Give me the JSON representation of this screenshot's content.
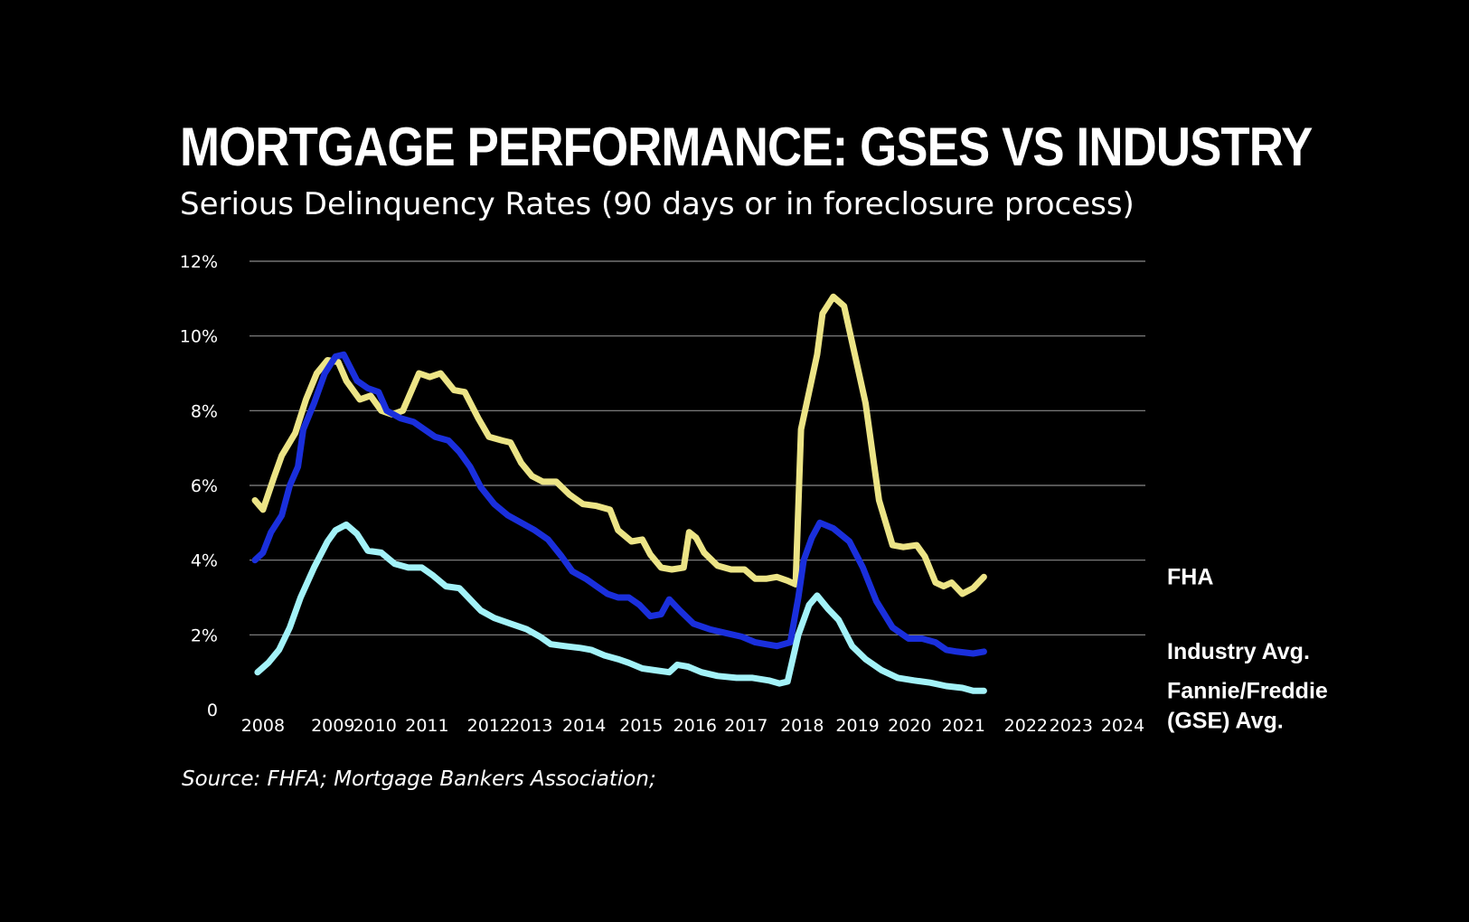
{
  "title": "MORTGAGE PERFORMANCE: GSES VS INDUSTRY",
  "subtitle": "Serious Delinquency Rates (90 days or in foreclosure process)",
  "source": "Source: FHFA; Mortgage Bankers Association;",
  "chart_data": {
    "type": "line",
    "title": "MORTGAGE PERFORMANCE: GSES VS INDUSTRY",
    "subtitle": "Serious Delinquency Rates (90 days or in foreclosure process)",
    "xlabel": "",
    "ylabel": "",
    "xlim": [
      2007.75,
      2024.4
    ],
    "ylim": [
      0,
      12
    ],
    "grid": true,
    "legend": "right-end labels",
    "y_ticks": [
      {
        "value": 0,
        "label": "0"
      },
      {
        "value": 2,
        "label": "2%"
      },
      {
        "value": 4,
        "label": "4%"
      },
      {
        "value": 6,
        "label": "6%"
      },
      {
        "value": 8,
        "label": "8%"
      },
      {
        "value": 10,
        "label": "10%"
      },
      {
        "value": 12,
        "label": "12%"
      }
    ],
    "x_ticks": [
      {
        "value": 2008,
        "label": "2008"
      },
      {
        "value": 2009.3,
        "label": "2009"
      },
      {
        "value": 2010.08,
        "label": "2010"
      },
      {
        "value": 2011.05,
        "label": "2011"
      },
      {
        "value": 2012.2,
        "label": "2012"
      },
      {
        "value": 2012.98,
        "label": "2013"
      },
      {
        "value": 2013.97,
        "label": "2014"
      },
      {
        "value": 2015.03,
        "label": "2015"
      },
      {
        "value": 2016.03,
        "label": "2016"
      },
      {
        "value": 2016.98,
        "label": "2017"
      },
      {
        "value": 2018.02,
        "label": "2018"
      },
      {
        "value": 2019.05,
        "label": "2019"
      },
      {
        "value": 2020.02,
        "label": "2020"
      },
      {
        "value": 2021.02,
        "label": "2021"
      },
      {
        "value": 2022.18,
        "label": "2022"
      },
      {
        "value": 2023.02,
        "label": "2023"
      },
      {
        "value": 2023.98,
        "label": "2024"
      }
    ],
    "series": [
      {
        "name": "FHA",
        "label_lines": [
          "FHA"
        ],
        "color": "#ece486",
        "points": [
          [
            2007.85,
            5.6
          ],
          [
            2008.0,
            5.35
          ],
          [
            2008.2,
            6.2
          ],
          [
            2008.35,
            6.8
          ],
          [
            2008.6,
            7.4
          ],
          [
            2008.8,
            8.3
          ],
          [
            2009.0,
            9.0
          ],
          [
            2009.2,
            9.35
          ],
          [
            2009.4,
            9.3
          ],
          [
            2009.55,
            8.8
          ],
          [
            2009.8,
            8.3
          ],
          [
            2010.0,
            8.4
          ],
          [
            2010.2,
            8.0
          ],
          [
            2010.4,
            7.9
          ],
          [
            2010.6,
            8.0
          ],
          [
            2010.9,
            9.0
          ],
          [
            2011.1,
            8.9
          ],
          [
            2011.3,
            9.0
          ],
          [
            2011.55,
            8.55
          ],
          [
            2011.75,
            8.5
          ],
          [
            2012.0,
            7.8
          ],
          [
            2012.2,
            7.3
          ],
          [
            2012.45,
            7.2
          ],
          [
            2012.6,
            7.15
          ],
          [
            2012.8,
            6.6
          ],
          [
            2013.0,
            6.25
          ],
          [
            2013.2,
            6.1
          ],
          [
            2013.45,
            6.1
          ],
          [
            2013.7,
            5.75
          ],
          [
            2013.95,
            5.5
          ],
          [
            2014.2,
            5.45
          ],
          [
            2014.45,
            5.35
          ],
          [
            2014.6,
            4.8
          ],
          [
            2014.85,
            4.5
          ],
          [
            2015.05,
            4.55
          ],
          [
            2015.2,
            4.15
          ],
          [
            2015.4,
            3.8
          ],
          [
            2015.6,
            3.75
          ],
          [
            2015.82,
            3.8
          ],
          [
            2015.92,
            4.75
          ],
          [
            2016.05,
            4.6
          ],
          [
            2016.2,
            4.2
          ],
          [
            2016.45,
            3.85
          ],
          [
            2016.7,
            3.75
          ],
          [
            2016.95,
            3.75
          ],
          [
            2017.15,
            3.5
          ],
          [
            2017.35,
            3.5
          ],
          [
            2017.55,
            3.55
          ],
          [
            2017.75,
            3.45
          ],
          [
            2017.9,
            3.35
          ],
          [
            2018.0,
            7.5
          ],
          [
            2018.15,
            8.5
          ],
          [
            2018.3,
            9.5
          ],
          [
            2018.4,
            10.6
          ],
          [
            2018.6,
            11.05
          ],
          [
            2018.8,
            10.8
          ],
          [
            2019.0,
            9.5
          ],
          [
            2019.2,
            8.2
          ],
          [
            2019.45,
            5.6
          ],
          [
            2019.7,
            4.4
          ],
          [
            2019.9,
            4.35
          ],
          [
            2020.15,
            4.4
          ],
          [
            2020.3,
            4.1
          ],
          [
            2020.5,
            3.4
          ],
          [
            2020.65,
            3.3
          ],
          [
            2020.8,
            3.4
          ],
          [
            2021.0,
            3.1
          ],
          [
            2021.2,
            3.25
          ],
          [
            2021.4,
            3.55
          ]
        ]
      },
      {
        "name": "Industry Avg.",
        "label_lines": [
          "Industry Avg."
        ],
        "color": "#1a2fdc",
        "points": [
          [
            2007.85,
            4.0
          ],
          [
            2008.0,
            4.2
          ],
          [
            2008.15,
            4.75
          ],
          [
            2008.35,
            5.2
          ],
          [
            2008.5,
            6.0
          ],
          [
            2008.65,
            6.5
          ],
          [
            2008.75,
            7.5
          ],
          [
            2008.95,
            8.2
          ],
          [
            2009.15,
            9.0
          ],
          [
            2009.35,
            9.45
          ],
          [
            2009.5,
            9.5
          ],
          [
            2009.75,
            8.8
          ],
          [
            2009.95,
            8.6
          ],
          [
            2010.15,
            8.5
          ],
          [
            2010.3,
            8.0
          ],
          [
            2010.55,
            7.8
          ],
          [
            2010.8,
            7.7
          ],
          [
            2011.0,
            7.5
          ],
          [
            2011.2,
            7.3
          ],
          [
            2011.45,
            7.2
          ],
          [
            2011.65,
            6.9
          ],
          [
            2011.85,
            6.5
          ],
          [
            2012.05,
            5.95
          ],
          [
            2012.3,
            5.5
          ],
          [
            2012.55,
            5.2
          ],
          [
            2012.8,
            5.0
          ],
          [
            2013.05,
            4.8
          ],
          [
            2013.3,
            4.55
          ],
          [
            2013.55,
            4.1
          ],
          [
            2013.75,
            3.7
          ],
          [
            2014.0,
            3.5
          ],
          [
            2014.2,
            3.3
          ],
          [
            2014.4,
            3.1
          ],
          [
            2014.6,
            3.0
          ],
          [
            2014.8,
            3.0
          ],
          [
            2015.0,
            2.8
          ],
          [
            2015.2,
            2.5
          ],
          [
            2015.4,
            2.55
          ],
          [
            2015.55,
            2.95
          ],
          [
            2015.75,
            2.65
          ],
          [
            2016.0,
            2.3
          ],
          [
            2016.3,
            2.15
          ],
          [
            2016.6,
            2.05
          ],
          [
            2016.9,
            1.95
          ],
          [
            2017.15,
            1.8
          ],
          [
            2017.35,
            1.75
          ],
          [
            2017.55,
            1.7
          ],
          [
            2017.8,
            1.8
          ],
          [
            2017.95,
            3.0
          ],
          [
            2018.05,
            4.0
          ],
          [
            2018.2,
            4.6
          ],
          [
            2018.35,
            5.0
          ],
          [
            2018.6,
            4.85
          ],
          [
            2018.9,
            4.5
          ],
          [
            2019.15,
            3.8
          ],
          [
            2019.4,
            2.9
          ],
          [
            2019.7,
            2.2
          ],
          [
            2020.0,
            1.9
          ],
          [
            2020.25,
            1.9
          ],
          [
            2020.5,
            1.8
          ],
          [
            2020.7,
            1.6
          ],
          [
            2020.9,
            1.55
          ],
          [
            2021.2,
            1.5
          ],
          [
            2021.4,
            1.55
          ]
        ]
      },
      {
        "name": "Fannie/Freddie (GSE) Avg.",
        "label_lines": [
          "Fannie/Freddie",
          "(GSE) Avg."
        ],
        "color": "#a3f2f8",
        "points": [
          [
            2007.9,
            1.0
          ],
          [
            2008.1,
            1.25
          ],
          [
            2008.3,
            1.6
          ],
          [
            2008.5,
            2.2
          ],
          [
            2008.7,
            3.0
          ],
          [
            2008.95,
            3.8
          ],
          [
            2009.2,
            4.5
          ],
          [
            2009.35,
            4.8
          ],
          [
            2009.55,
            4.95
          ],
          [
            2009.75,
            4.7
          ],
          [
            2009.95,
            4.25
          ],
          [
            2010.2,
            4.2
          ],
          [
            2010.45,
            3.9
          ],
          [
            2010.7,
            3.8
          ],
          [
            2010.95,
            3.8
          ],
          [
            2011.15,
            3.6
          ],
          [
            2011.4,
            3.3
          ],
          [
            2011.65,
            3.25
          ],
          [
            2011.85,
            2.95
          ],
          [
            2012.05,
            2.65
          ],
          [
            2012.3,
            2.45
          ],
          [
            2012.6,
            2.3
          ],
          [
            2012.9,
            2.15
          ],
          [
            2013.15,
            1.95
          ],
          [
            2013.35,
            1.75
          ],
          [
            2013.6,
            1.7
          ],
          [
            2013.9,
            1.65
          ],
          [
            2014.1,
            1.6
          ],
          [
            2014.35,
            1.45
          ],
          [
            2014.6,
            1.35
          ],
          [
            2014.8,
            1.25
          ],
          [
            2015.05,
            1.1
          ],
          [
            2015.3,
            1.05
          ],
          [
            2015.55,
            1.0
          ],
          [
            2015.7,
            1.2
          ],
          [
            2015.9,
            1.15
          ],
          [
            2016.15,
            1.0
          ],
          [
            2016.45,
            0.9
          ],
          [
            2016.8,
            0.85
          ],
          [
            2017.1,
            0.85
          ],
          [
            2017.4,
            0.78
          ],
          [
            2017.6,
            0.7
          ],
          [
            2017.75,
            0.75
          ],
          [
            2017.95,
            2.0
          ],
          [
            2018.15,
            2.8
          ],
          [
            2018.3,
            3.05
          ],
          [
            2018.5,
            2.7
          ],
          [
            2018.7,
            2.4
          ],
          [
            2018.95,
            1.7
          ],
          [
            2019.2,
            1.35
          ],
          [
            2019.5,
            1.05
          ],
          [
            2019.8,
            0.85
          ],
          [
            2020.1,
            0.78
          ],
          [
            2020.4,
            0.72
          ],
          [
            2020.7,
            0.63
          ],
          [
            2021.0,
            0.58
          ],
          [
            2021.2,
            0.5
          ],
          [
            2021.4,
            0.5
          ]
        ]
      }
    ]
  }
}
